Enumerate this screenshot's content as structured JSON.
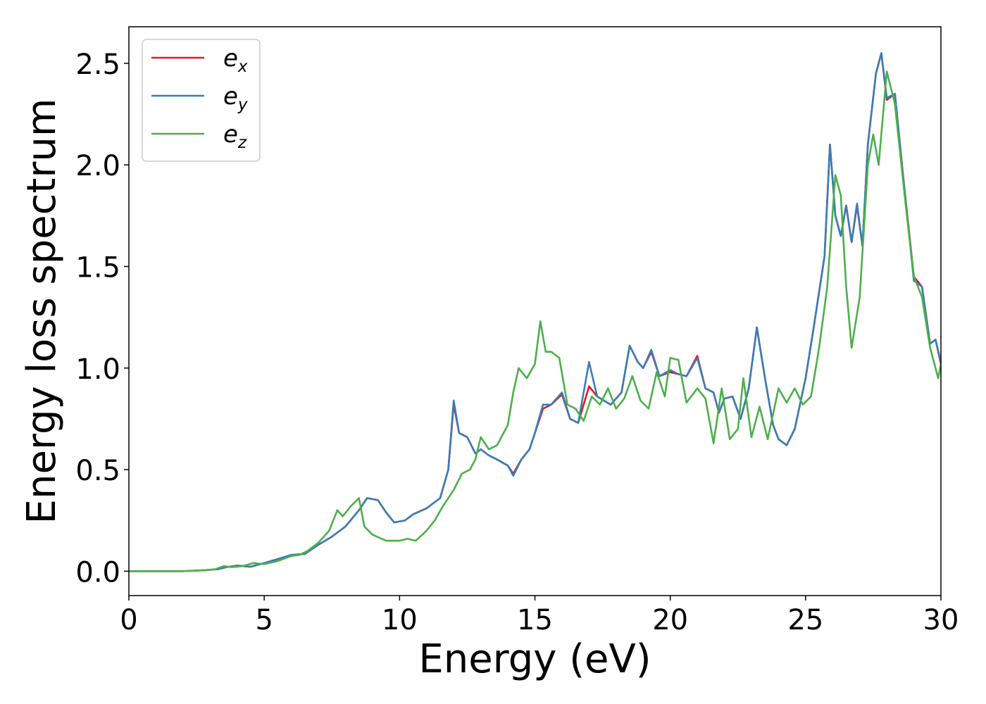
{
  "chart_data": {
    "type": "line",
    "xlabel": "Energy (eV)",
    "ylabel": "Energy loss spectrum",
    "xlim": [
      0,
      30
    ],
    "ylim": [
      -0.12,
      2.68
    ],
    "xticks": [
      0,
      5,
      10,
      15,
      20,
      25,
      30
    ],
    "xtick_labels": [
      "0",
      "5",
      "10",
      "15",
      "20",
      "25",
      "30"
    ],
    "yticks": [
      0.0,
      0.5,
      1.0,
      1.5,
      2.0,
      2.5
    ],
    "ytick_labels": [
      "0.0",
      "0.5",
      "1.0",
      "1.5",
      "2.0",
      "2.5"
    ],
    "grid": false,
    "legend_position": "top-left",
    "legend": [
      {
        "base": "e",
        "sub": "x",
        "color": "#e41a1c"
      },
      {
        "base": "e",
        "sub": "y",
        "color": "#377eb8"
      },
      {
        "base": "e",
        "sub": "z",
        "color": "#4daf4a"
      }
    ],
    "series": [
      {
        "name": "e_x",
        "color": "#e41a1c",
        "points": [
          [
            0,
            0
          ],
          [
            1,
            0
          ],
          [
            2,
            0
          ],
          [
            2.8,
            0.005
          ],
          [
            3.3,
            0.01
          ],
          [
            3.6,
            0.02
          ],
          [
            4.0,
            0.028
          ],
          [
            4.5,
            0.022
          ],
          [
            5.0,
            0.04
          ],
          [
            5.5,
            0.06
          ],
          [
            6.0,
            0.08
          ],
          [
            6.5,
            0.085
          ],
          [
            7.0,
            0.13
          ],
          [
            7.5,
            0.17
          ],
          [
            8.0,
            0.22
          ],
          [
            8.5,
            0.3
          ],
          [
            8.8,
            0.36
          ],
          [
            9.2,
            0.35
          ],
          [
            9.5,
            0.29
          ],
          [
            9.8,
            0.24
          ],
          [
            10.2,
            0.25
          ],
          [
            10.5,
            0.28
          ],
          [
            11.0,
            0.31
          ],
          [
            11.5,
            0.36
          ],
          [
            11.8,
            0.5
          ],
          [
            12.0,
            0.82
          ],
          [
            12.2,
            0.68
          ],
          [
            12.5,
            0.66
          ],
          [
            12.8,
            0.58
          ],
          [
            13.0,
            0.6
          ],
          [
            13.3,
            0.57
          ],
          [
            13.6,
            0.55
          ],
          [
            14.0,
            0.52
          ],
          [
            14.2,
            0.48
          ],
          [
            14.5,
            0.55
          ],
          [
            14.8,
            0.6
          ],
          [
            15.0,
            0.68
          ],
          [
            15.3,
            0.8
          ],
          [
            15.6,
            0.82
          ],
          [
            16.0,
            0.87
          ],
          [
            16.3,
            0.75
          ],
          [
            16.6,
            0.73
          ],
          [
            17.0,
            0.91
          ],
          [
            17.3,
            0.86
          ],
          [
            17.8,
            0.82
          ],
          [
            18.2,
            0.88
          ],
          [
            18.5,
            1.11
          ],
          [
            18.8,
            1.03
          ],
          [
            19.0,
            1.0
          ],
          [
            19.3,
            1.08
          ],
          [
            19.6,
            0.96
          ],
          [
            20.0,
            0.98
          ],
          [
            20.3,
            0.97
          ],
          [
            20.6,
            0.96
          ],
          [
            21.0,
            1.06
          ],
          [
            21.3,
            0.9
          ],
          [
            21.6,
            0.88
          ],
          [
            21.8,
            0.78
          ],
          [
            22.0,
            0.85
          ],
          [
            22.3,
            0.86
          ],
          [
            22.6,
            0.75
          ],
          [
            22.9,
            0.9
          ],
          [
            23.2,
            1.2
          ],
          [
            23.5,
            0.95
          ],
          [
            23.8,
            0.72
          ],
          [
            24.0,
            0.65
          ],
          [
            24.3,
            0.62
          ],
          [
            24.6,
            0.7
          ],
          [
            25.0,
            0.95
          ],
          [
            25.3,
            1.2
          ],
          [
            25.7,
            1.55
          ],
          [
            25.9,
            2.1
          ],
          [
            26.1,
            1.75
          ],
          [
            26.3,
            1.65
          ],
          [
            26.5,
            1.8
          ],
          [
            26.7,
            1.62
          ],
          [
            26.9,
            1.8
          ],
          [
            27.1,
            1.6
          ],
          [
            27.3,
            2.1
          ],
          [
            27.6,
            2.45
          ],
          [
            27.8,
            2.55
          ],
          [
            28.0,
            2.32
          ],
          [
            28.3,
            2.35
          ],
          [
            28.6,
            1.95
          ],
          [
            29.0,
            1.45
          ],
          [
            29.3,
            1.4
          ],
          [
            29.6,
            1.12
          ],
          [
            29.8,
            1.14
          ],
          [
            30.0,
            1.02
          ]
        ]
      },
      {
        "name": "e_y",
        "color": "#377eb8",
        "points": [
          [
            0,
            0
          ],
          [
            1,
            0
          ],
          [
            2,
            0
          ],
          [
            2.8,
            0.005
          ],
          [
            3.3,
            0.01
          ],
          [
            3.6,
            0.02
          ],
          [
            4.0,
            0.028
          ],
          [
            4.5,
            0.022
          ],
          [
            5.0,
            0.04
          ],
          [
            5.5,
            0.06
          ],
          [
            6.0,
            0.08
          ],
          [
            6.5,
            0.085
          ],
          [
            7.0,
            0.13
          ],
          [
            7.5,
            0.17
          ],
          [
            8.0,
            0.22
          ],
          [
            8.5,
            0.3
          ],
          [
            8.8,
            0.36
          ],
          [
            9.2,
            0.35
          ],
          [
            9.5,
            0.29
          ],
          [
            9.8,
            0.24
          ],
          [
            10.2,
            0.25
          ],
          [
            10.5,
            0.28
          ],
          [
            11.0,
            0.31
          ],
          [
            11.5,
            0.36
          ],
          [
            11.8,
            0.5
          ],
          [
            12.0,
            0.84
          ],
          [
            12.2,
            0.68
          ],
          [
            12.5,
            0.66
          ],
          [
            12.8,
            0.58
          ],
          [
            13.0,
            0.6
          ],
          [
            13.3,
            0.57
          ],
          [
            13.6,
            0.55
          ],
          [
            14.0,
            0.52
          ],
          [
            14.2,
            0.47
          ],
          [
            14.5,
            0.55
          ],
          [
            14.8,
            0.6
          ],
          [
            15.0,
            0.68
          ],
          [
            15.3,
            0.82
          ],
          [
            15.6,
            0.82
          ],
          [
            16.0,
            0.88
          ],
          [
            16.3,
            0.75
          ],
          [
            16.6,
            0.73
          ],
          [
            17.0,
            1.03
          ],
          [
            17.3,
            0.86
          ],
          [
            17.8,
            0.82
          ],
          [
            18.2,
            0.88
          ],
          [
            18.5,
            1.11
          ],
          [
            18.8,
            1.03
          ],
          [
            19.0,
            1.0
          ],
          [
            19.3,
            1.09
          ],
          [
            19.6,
            0.96
          ],
          [
            20.0,
            0.99
          ],
          [
            20.3,
            0.97
          ],
          [
            20.6,
            0.96
          ],
          [
            21.0,
            1.05
          ],
          [
            21.3,
            0.9
          ],
          [
            21.6,
            0.88
          ],
          [
            21.8,
            0.78
          ],
          [
            22.0,
            0.85
          ],
          [
            22.3,
            0.86
          ],
          [
            22.6,
            0.75
          ],
          [
            22.9,
            0.9
          ],
          [
            23.2,
            1.2
          ],
          [
            23.5,
            0.95
          ],
          [
            23.8,
            0.72
          ],
          [
            24.0,
            0.65
          ],
          [
            24.3,
            0.62
          ],
          [
            24.6,
            0.7
          ],
          [
            25.0,
            0.95
          ],
          [
            25.3,
            1.2
          ],
          [
            25.7,
            1.55
          ],
          [
            25.9,
            2.1
          ],
          [
            26.1,
            1.75
          ],
          [
            26.3,
            1.65
          ],
          [
            26.5,
            1.8
          ],
          [
            26.7,
            1.62
          ],
          [
            26.9,
            1.81
          ],
          [
            27.1,
            1.6
          ],
          [
            27.3,
            2.1
          ],
          [
            27.6,
            2.45
          ],
          [
            27.8,
            2.55
          ],
          [
            28.0,
            2.33
          ],
          [
            28.3,
            2.35
          ],
          [
            28.6,
            1.95
          ],
          [
            29.0,
            1.43
          ],
          [
            29.3,
            1.4
          ],
          [
            29.6,
            1.12
          ],
          [
            29.8,
            1.14
          ],
          [
            30.0,
            1.03
          ]
        ]
      },
      {
        "name": "e_z",
        "color": "#4daf4a",
        "points": [
          [
            0,
            0
          ],
          [
            1,
            0
          ],
          [
            2,
            0
          ],
          [
            2.8,
            0.005
          ],
          [
            3.2,
            0.01
          ],
          [
            3.5,
            0.025
          ],
          [
            3.8,
            0.02
          ],
          [
            4.2,
            0.025
          ],
          [
            4.6,
            0.04
          ],
          [
            5.0,
            0.035
          ],
          [
            5.5,
            0.05
          ],
          [
            6.0,
            0.075
          ],
          [
            6.3,
            0.08
          ],
          [
            6.6,
            0.1
          ],
          [
            7.0,
            0.14
          ],
          [
            7.4,
            0.2
          ],
          [
            7.7,
            0.3
          ],
          [
            7.9,
            0.27
          ],
          [
            8.2,
            0.32
          ],
          [
            8.5,
            0.36
          ],
          [
            8.7,
            0.22
          ],
          [
            9.0,
            0.18
          ],
          [
            9.5,
            0.15
          ],
          [
            10.0,
            0.15
          ],
          [
            10.3,
            0.16
          ],
          [
            10.6,
            0.15
          ],
          [
            11.0,
            0.2
          ],
          [
            11.3,
            0.25
          ],
          [
            11.6,
            0.32
          ],
          [
            12.0,
            0.4
          ],
          [
            12.3,
            0.48
          ],
          [
            12.6,
            0.5
          ],
          [
            12.8,
            0.55
          ],
          [
            13.0,
            0.66
          ],
          [
            13.3,
            0.6
          ],
          [
            13.6,
            0.62
          ],
          [
            14.0,
            0.72
          ],
          [
            14.2,
            0.88
          ],
          [
            14.4,
            1.0
          ],
          [
            14.7,
            0.95
          ],
          [
            15.0,
            1.02
          ],
          [
            15.2,
            1.23
          ],
          [
            15.4,
            1.08
          ],
          [
            15.6,
            1.08
          ],
          [
            15.9,
            1.05
          ],
          [
            16.2,
            0.82
          ],
          [
            16.5,
            0.8
          ],
          [
            16.8,
            0.74
          ],
          [
            17.1,
            0.86
          ],
          [
            17.4,
            0.82
          ],
          [
            17.7,
            0.9
          ],
          [
            18.0,
            0.8
          ],
          [
            18.3,
            0.85
          ],
          [
            18.6,
            0.96
          ],
          [
            18.9,
            0.84
          ],
          [
            19.2,
            0.8
          ],
          [
            19.5,
            0.98
          ],
          [
            19.8,
            0.86
          ],
          [
            20.0,
            1.05
          ],
          [
            20.3,
            1.04
          ],
          [
            20.6,
            0.83
          ],
          [
            21.0,
            0.9
          ],
          [
            21.3,
            0.85
          ],
          [
            21.6,
            0.63
          ],
          [
            21.9,
            0.9
          ],
          [
            22.2,
            0.65
          ],
          [
            22.5,
            0.7
          ],
          [
            22.7,
            0.95
          ],
          [
            23.0,
            0.66
          ],
          [
            23.3,
            0.81
          ],
          [
            23.6,
            0.65
          ],
          [
            24.0,
            0.9
          ],
          [
            24.3,
            0.83
          ],
          [
            24.6,
            0.9
          ],
          [
            24.9,
            0.82
          ],
          [
            25.2,
            0.86
          ],
          [
            25.5,
            1.1
          ],
          [
            25.8,
            1.4
          ],
          [
            26.1,
            1.95
          ],
          [
            26.3,
            1.85
          ],
          [
            26.5,
            1.4
          ],
          [
            26.7,
            1.1
          ],
          [
            27.0,
            1.35
          ],
          [
            27.3,
            2.0
          ],
          [
            27.5,
            2.15
          ],
          [
            27.7,
            2.0
          ],
          [
            28.0,
            2.46
          ],
          [
            28.3,
            2.3
          ],
          [
            28.7,
            1.8
          ],
          [
            29.0,
            1.45
          ],
          [
            29.3,
            1.35
          ],
          [
            29.6,
            1.1
          ],
          [
            29.9,
            0.95
          ],
          [
            30.0,
            1.02
          ]
        ]
      }
    ]
  }
}
